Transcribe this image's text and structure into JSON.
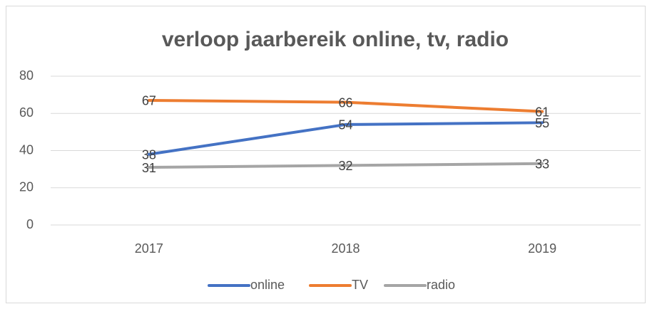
{
  "chart_data": {
    "type": "line",
    "title": "verloop jaarbereik online, tv, radio",
    "categories": [
      "2017",
      "2018",
      "2019"
    ],
    "series": [
      {
        "name": "online",
        "color": "#4472c4",
        "values": [
          38,
          54,
          55
        ]
      },
      {
        "name": "TV",
        "color": "#ed7d31",
        "values": [
          67,
          66,
          61
        ]
      },
      {
        "name": "radio",
        "color": "#a5a5a5",
        "values": [
          31,
          32,
          33
        ]
      }
    ],
    "ylim": [
      0,
      80
    ],
    "yticks": [
      0,
      20,
      40,
      60,
      80
    ],
    "grid": true,
    "legend": "bottom",
    "data_labels": true
  }
}
